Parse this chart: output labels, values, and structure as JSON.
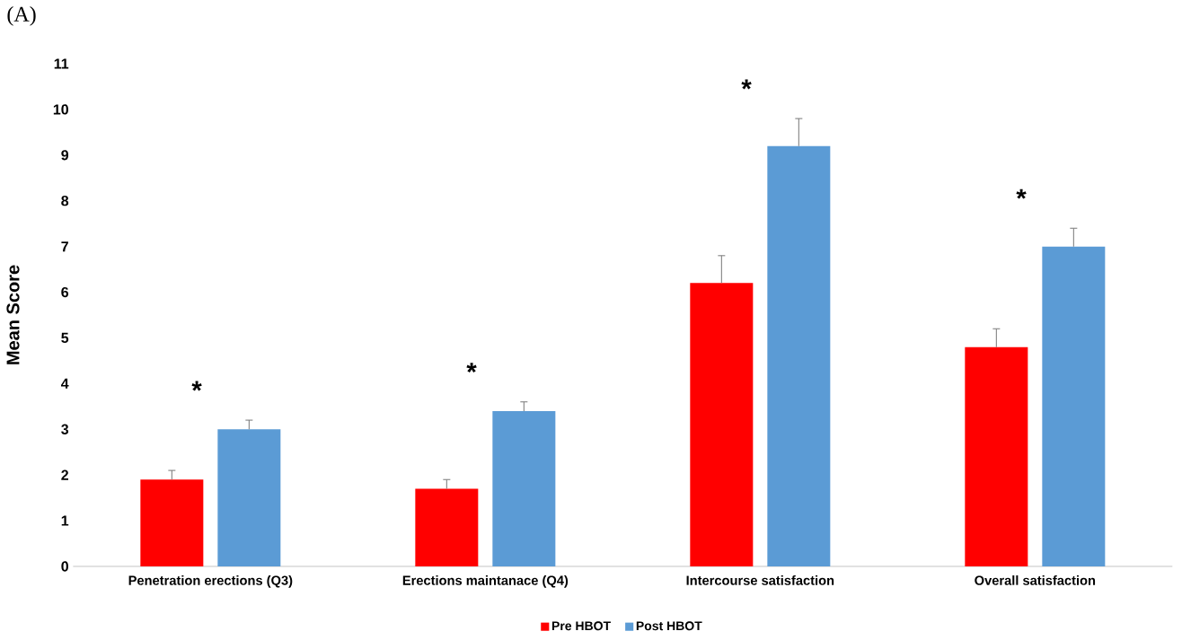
{
  "chart_data": {
    "type": "bar",
    "ylabel": "Mean Score",
    "categories": [
      "Penetration erections (Q3)",
      "Erections maintanace (Q4)",
      "Intercourse satisfaction",
      "Overall satisfaction"
    ],
    "series": [
      {
        "name": "Pre HBOT",
        "color": "#ff0000",
        "values": [
          1.9,
          1.7,
          6.2,
          4.8
        ],
        "errors": [
          0.2,
          0.2,
          0.6,
          0.4
        ]
      },
      {
        "name": "Post HBOT",
        "color": "#5b9bd5",
        "values": [
          3.0,
          3.4,
          9.2,
          7.0
        ],
        "errors": [
          0.2,
          0.2,
          0.6,
          0.4
        ]
      }
    ],
    "ylim": [
      0,
      11
    ],
    "yticks": [
      0,
      1,
      2,
      3,
      4,
      5,
      6,
      7,
      8,
      9,
      10,
      11
    ],
    "grid": false,
    "legend": "bottom",
    "annotations": [
      "(A)",
      "*",
      "*",
      "*",
      "*"
    ]
  }
}
